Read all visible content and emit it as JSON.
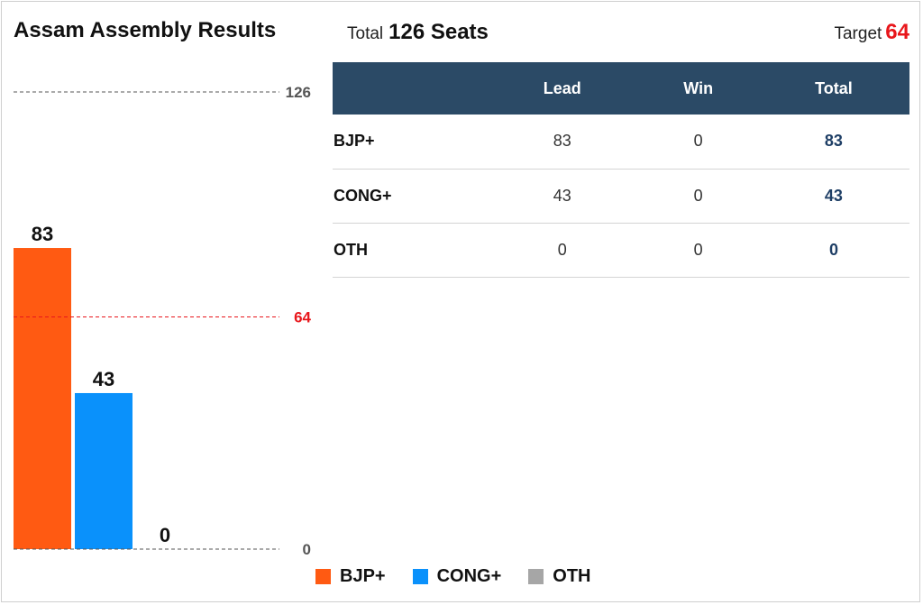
{
  "header": {
    "title": "Assam Assembly Results",
    "total_label": "Total",
    "total_value": "126 Seats",
    "target_label": "Target",
    "target_value": "64"
  },
  "colors": {
    "bjp": "#ff5a12",
    "cong": "#0a91fb",
    "oth": "#a6a6a6",
    "target": "#e8161b",
    "table_header_bg": "#2b4a66",
    "table_total_text": "#1f3f66",
    "axis_line": "#555555"
  },
  "table": {
    "columns": [
      "",
      "Lead",
      "Win",
      "Total"
    ],
    "rows": [
      {
        "party": "BJP+",
        "lead": "83",
        "win": "0",
        "total": "83"
      },
      {
        "party": "CONG+",
        "lead": "43",
        "win": "0",
        "total": "43"
      },
      {
        "party": "OTH",
        "lead": "0",
        "win": "0",
        "total": "0"
      }
    ]
  },
  "legend": [
    {
      "label": "BJP+",
      "color": "#ff5a12"
    },
    {
      "label": "CONG+",
      "color": "#0a91fb"
    },
    {
      "label": "OTH",
      "color": "#a6a6a6"
    }
  ],
  "chart_data": {
    "type": "bar",
    "categories": [
      "BJP+",
      "CONG+",
      "OTH"
    ],
    "values": [
      83,
      43,
      0
    ],
    "colors": [
      "#ff5a12",
      "#0a91fb",
      "#a6a6a6"
    ],
    "ylim": [
      0,
      126
    ],
    "reference_lines": [
      {
        "value": 126,
        "label": "126",
        "style": "dashed",
        "color": "#555555"
      },
      {
        "value": 64,
        "label": "64",
        "style": "dashed",
        "color": "#e8161b"
      },
      {
        "value": 0,
        "label": "0",
        "style": "dashed",
        "color": "#555555"
      }
    ],
    "data_labels": [
      "83",
      "43",
      "0"
    ],
    "legend_position": "bottom",
    "grid": false
  }
}
